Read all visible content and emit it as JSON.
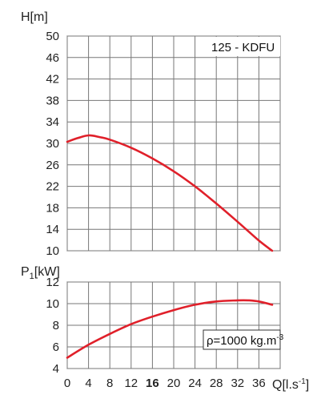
{
  "chart_data": [
    {
      "type": "line",
      "title": "125 - KDFU",
      "ylabel": "H[m]",
      "xlabel": "",
      "xlim": [
        0,
        40
      ],
      "ylim": [
        10,
        50
      ],
      "x_ticks": [
        "0",
        "4",
        "8",
        "12",
        "16",
        "20",
        "24",
        "28",
        "32",
        "36"
      ],
      "y_ticks": [
        "10",
        "14",
        "18",
        "22",
        "26",
        "30",
        "34",
        "38",
        "42",
        "46",
        "50"
      ],
      "grid": true,
      "series": [
        {
          "color": "#e0202a",
          "x": [
            0,
            2,
            4,
            6,
            8,
            12,
            16,
            20,
            24,
            28,
            32,
            36,
            38.5
          ],
          "y": [
            30.3,
            31.0,
            31.5,
            31.2,
            30.7,
            29.2,
            27.2,
            24.8,
            22.0,
            18.8,
            15.4,
            11.9,
            10.0
          ]
        }
      ]
    },
    {
      "type": "line",
      "ylabel": "P1[kW]",
      "xlabel": "Q[l.s-1]",
      "xlim": [
        0,
        40
      ],
      "ylim": [
        4,
        12
      ],
      "x_ticks": [
        "0",
        "4",
        "8",
        "12",
        "16",
        "20",
        "24",
        "28",
        "32",
        "36"
      ],
      "y_ticks": [
        "4",
        "6",
        "8",
        "10",
        "12"
      ],
      "grid": true,
      "annotation": "ρ=1000 kg.m-3",
      "series": [
        {
          "color": "#e0202a",
          "x": [
            0,
            4,
            8,
            12,
            16,
            20,
            24,
            28,
            32,
            34,
            36,
            38.5
          ],
          "y": [
            5.0,
            6.2,
            7.2,
            8.1,
            8.8,
            9.4,
            9.9,
            10.2,
            10.3,
            10.3,
            10.2,
            9.9
          ]
        }
      ]
    }
  ]
}
